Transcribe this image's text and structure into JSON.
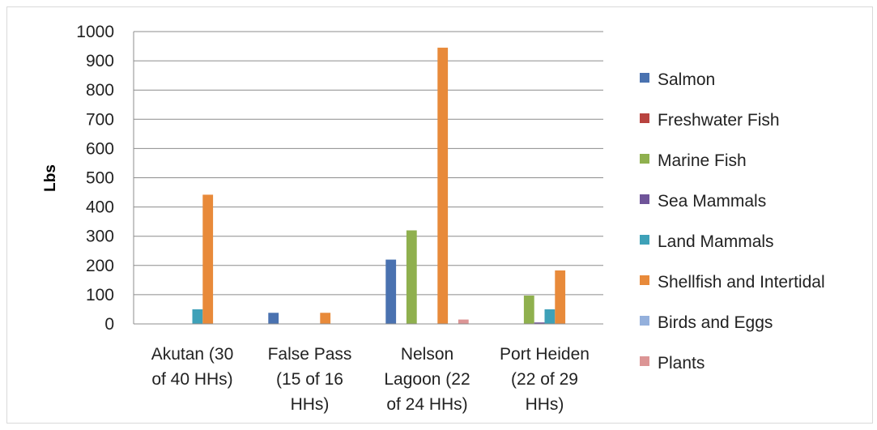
{
  "chart_data": {
    "type": "bar",
    "title": "",
    "xlabel": "",
    "ylabel": "Lbs",
    "ylim": [
      0,
      1000
    ],
    "yticks": [
      0,
      100,
      200,
      300,
      400,
      500,
      600,
      700,
      800,
      900,
      1000
    ],
    "grid": true,
    "legend_position": "right",
    "categories": [
      [
        "Akutan (30",
        "of 40 HHs)"
      ],
      [
        "False Pass",
        "(15 of 16",
        "HHs)"
      ],
      [
        "Nelson",
        "Lagoon (22",
        "of 24 HHs)"
      ],
      [
        "Port Heiden",
        "(22 of 29",
        "HHs)"
      ]
    ],
    "series": [
      {
        "name": "Salmon",
        "color": "#4a72b0",
        "values": [
          0,
          38,
          220,
          0
        ]
      },
      {
        "name": "Freshwater Fish",
        "color": "#b8433f",
        "values": [
          0,
          0,
          0,
          0
        ]
      },
      {
        "name": "Marine Fish",
        "color": "#8fb04e",
        "values": [
          0,
          0,
          320,
          97
        ]
      },
      {
        "name": "Sea Mammals",
        "color": "#6f5499",
        "values": [
          0,
          0,
          0,
          5
        ]
      },
      {
        "name": "Land Mammals",
        "color": "#3ea1b8",
        "values": [
          50,
          0,
          0,
          50
        ]
      },
      {
        "name": "Shellfish and Intertidal",
        "color": "#e88a3a",
        "values": [
          442,
          38,
          945,
          183
        ]
      },
      {
        "name": "Birds and Eggs",
        "color": "#94b0dc",
        "values": [
          0,
          0,
          0,
          0
        ]
      },
      {
        "name": "Plants",
        "color": "#dc9595",
        "values": [
          0,
          0,
          15,
          0
        ]
      }
    ]
  }
}
